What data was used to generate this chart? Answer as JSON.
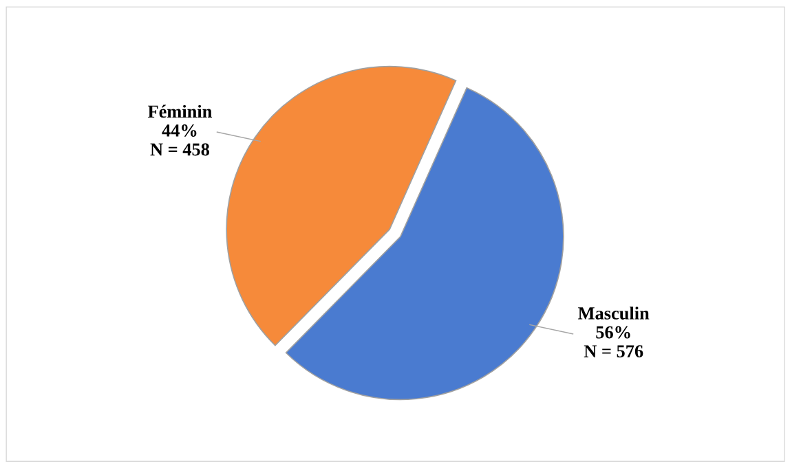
{
  "chart_data": {
    "type": "pie",
    "categories": [
      "Masculin",
      "Féminin"
    ],
    "values": [
      576,
      458
    ],
    "value_labels": [
      "56%\nN = 576",
      "44%\nN = 458"
    ],
    "colors": [
      "#4a7bd0",
      "#f68a3a"
    ],
    "legend": false
  }
}
